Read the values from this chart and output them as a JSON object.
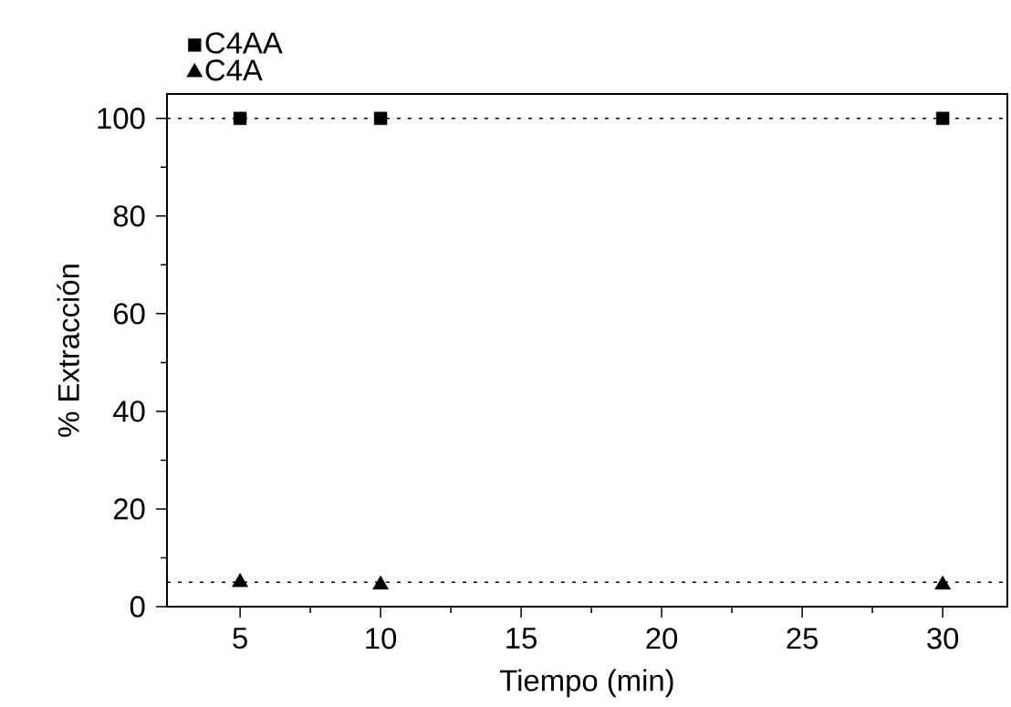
{
  "chart_data": {
    "type": "scatter",
    "xlabel": "Tiempo (min)",
    "ylabel": "% Extracción",
    "x": [
      5,
      10,
      30
    ],
    "series": [
      {
        "name": "C4AA",
        "color": "#000000",
        "marker": "square",
        "values": [
          100,
          100,
          100
        ]
      },
      {
        "name": "C4A",
        "color": "#000000",
        "marker": "triangle",
        "values": [
          5,
          4.5,
          4.5
        ]
      }
    ],
    "xlim": [
      2.4,
      32.3
    ],
    "ylim": [
      0,
      105
    ],
    "xticks": [
      5,
      10,
      15,
      20,
      25,
      30
    ],
    "yticks": [
      0,
      20,
      40,
      60,
      80,
      100
    ],
    "ref_lines": [
      {
        "axis": "y",
        "value": 100,
        "color": "#000000",
        "line_style": "dotted"
      },
      {
        "axis": "y",
        "value": 5,
        "color": "#000000",
        "line_style": "dotted"
      }
    ],
    "grid": false,
    "legend": "top left"
  }
}
